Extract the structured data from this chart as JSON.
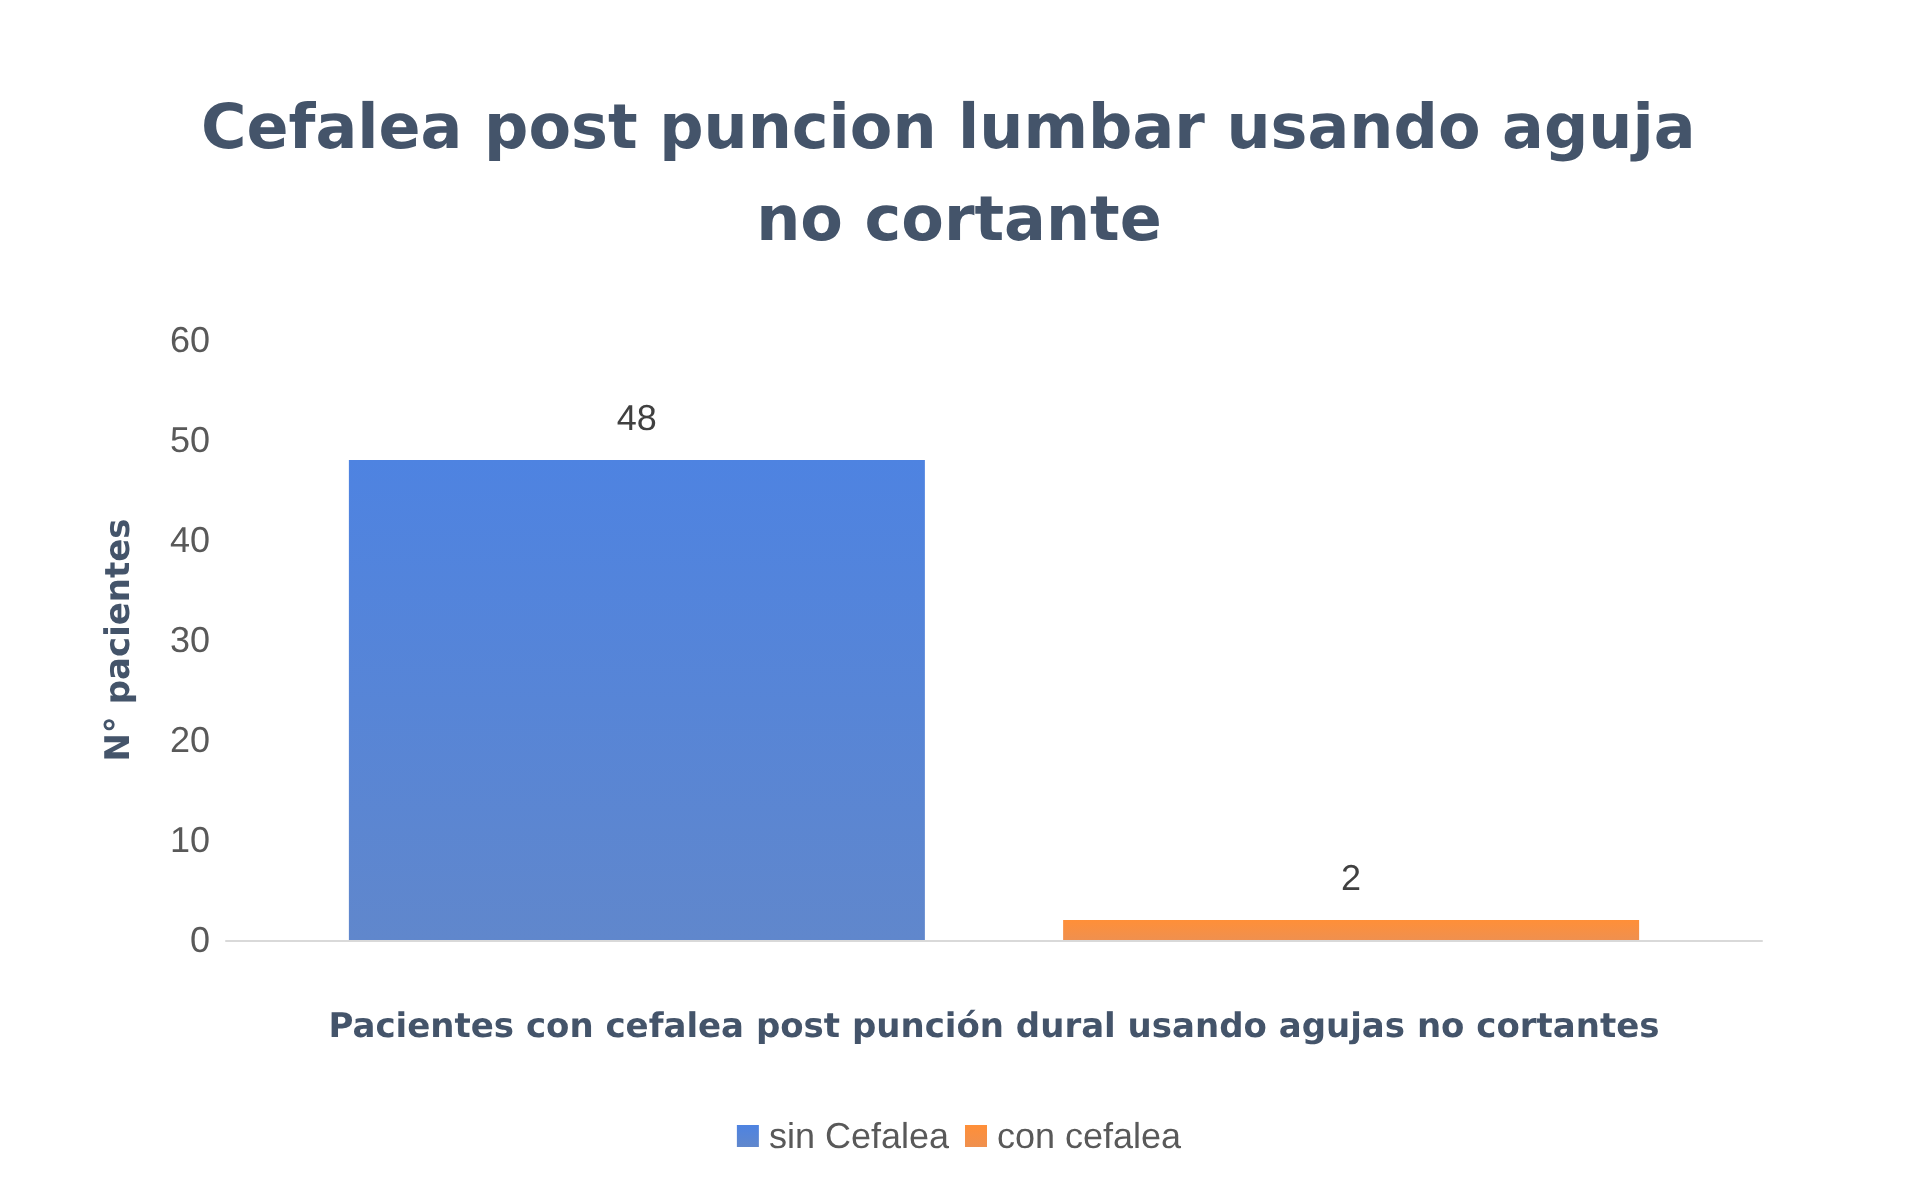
{
  "chart_data": {
    "type": "bar",
    "title": "Cefalea post puncion lumbar usando aguja no cortante",
    "xlabel": "Pacientes con cefalea post punción dural usando agujas no cortantes",
    "ylabel": "N° pacientes",
    "categories": [
      null
    ],
    "series": [
      {
        "name": "sin Cefalea",
        "color": "#4472c4",
        "values": [
          48
        ]
      },
      {
        "name": "con cefalea",
        "color": "#ed7d31",
        "values": [
          2
        ]
      }
    ],
    "ylim": [
      0,
      60
    ],
    "yticks": [
      0,
      10,
      20,
      30,
      40,
      50,
      60
    ],
    "grid": false,
    "legend": "bottom",
    "data_labels": true
  }
}
